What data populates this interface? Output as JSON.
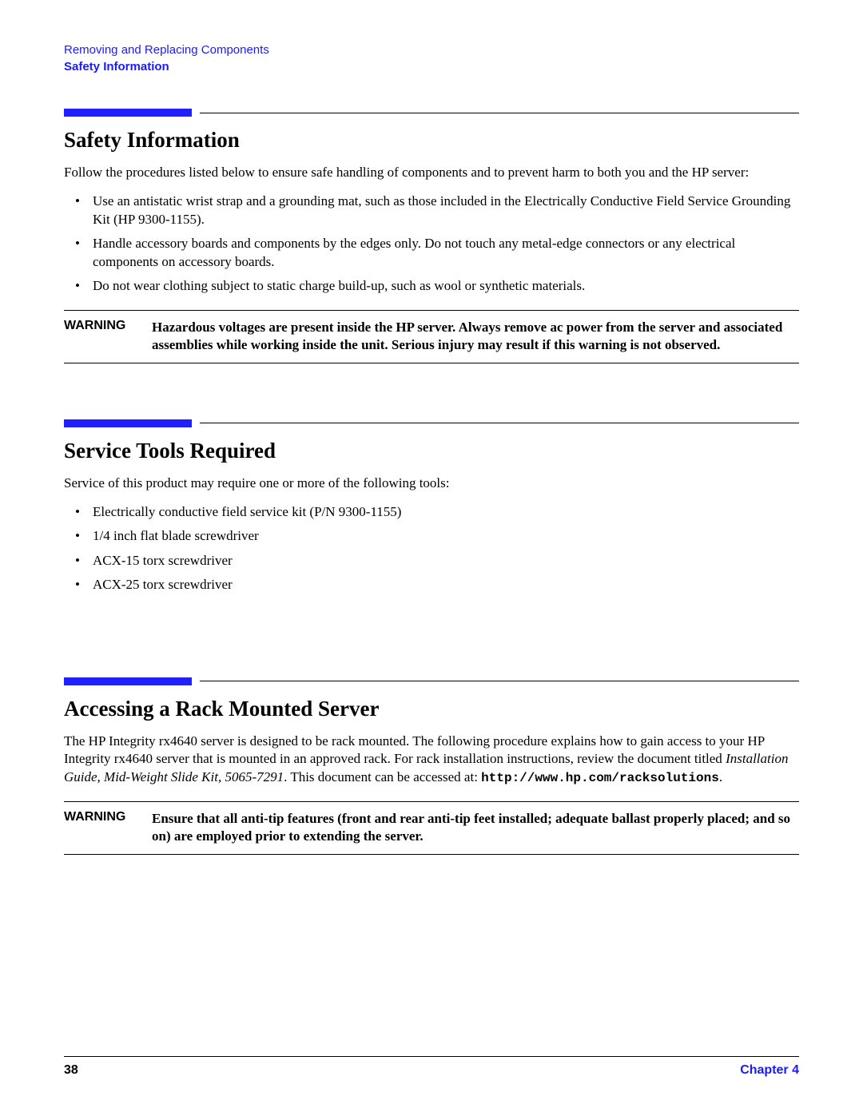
{
  "header": {
    "breadcrumb": "Removing and Replacing Components",
    "section": "Safety Information"
  },
  "sections": {
    "safety": {
      "heading": "Safety Information",
      "intro": "Follow the procedures listed below to ensure safe handling of components and to prevent harm to both you and the HP server:",
      "bullets": [
        "Use an antistatic wrist strap and a grounding mat, such as those included in the Electrically Conductive Field Service Grounding Kit (HP 9300-1155).",
        "Handle accessory boards and components by the edges only. Do not touch any metal-edge connectors or any electrical components on accessory boards.",
        "Do not wear clothing subject to static charge build-up, such as wool or synthetic materials."
      ],
      "warning_label": "WARNING",
      "warning_text": "Hazardous voltages are present inside the HP server. Always remove ac power from the server and associated assemblies while working inside the unit. Serious injury may result if this warning is not observed."
    },
    "tools": {
      "heading": "Service Tools Required",
      "intro": "Service of this product may require one or more of the following tools:",
      "bullets": [
        "Electrically conductive field service kit (P/N 9300-1155)",
        "1/4 inch flat blade screwdriver",
        "ACX-15 torx screwdriver",
        "ACX-25 torx screwdriver"
      ]
    },
    "rack": {
      "heading": "Accessing a Rack Mounted Server",
      "para_lead": "The HP Integrity rx4640 server is designed to be rack mounted. The following procedure explains how to gain access to your HP Integrity rx4640 server that is mounted in an approved rack. For rack installation instructions, review the document titled ",
      "para_italic": "Installation Guide, Mid-Weight Slide Kit, 5065-7291",
      "para_mid": ". This document can be accessed at: ",
      "para_url": "http://www.hp.com/racksolutions",
      "para_end": ".",
      "warning_label": "WARNING",
      "warning_text": "Ensure that all anti-tip features (front and rear anti-tip feet installed; adequate ballast properly placed; and so on) are employed prior to extending the server."
    }
  },
  "footer": {
    "page": "38",
    "chapter": "Chapter 4"
  },
  "colors": {
    "blue": "#2020ff",
    "link_blue": "#1a1aff"
  }
}
